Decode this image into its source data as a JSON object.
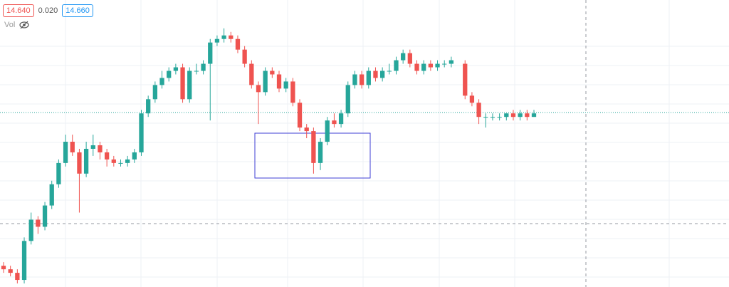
{
  "chart_data": {
    "type": "candlestick",
    "price_labels": [
      "14.640",
      "0.020",
      "14.660"
    ],
    "volume_label": "Vol",
    "up_color": "#26a69a",
    "down_color": "#ef5350",
    "ylim": [
      14.17,
      14.98
    ],
    "open": [
      14.23,
      14.22,
      14.21,
      14.19,
      14.3,
      14.36,
      14.34,
      14.4,
      14.46,
      14.52,
      14.58,
      14.55,
      14.49,
      14.56,
      14.57,
      14.55,
      14.53,
      14.52,
      14.52,
      14.53,
      14.55,
      14.66,
      14.7,
      14.74,
      14.76,
      14.78,
      14.79,
      14.7,
      14.78,
      14.78,
      14.8,
      14.86,
      14.87,
      14.88,
      14.87,
      14.84,
      14.8,
      14.74,
      14.72,
      14.78,
      14.77,
      14.73,
      14.75,
      14.69,
      14.62,
      14.61,
      14.52,
      14.58,
      14.64,
      14.63,
      14.66,
      14.74,
      14.77,
      14.74,
      14.78,
      14.76,
      14.78,
      14.78,
      14.81,
      14.83,
      14.8,
      14.78,
      14.8,
      14.79,
      14.8,
      14.8,
      null,
      14.8,
      14.71,
      14.69,
      14.65,
      14.65,
      14.65,
      14.65,
      14.66,
      14.65,
      14.66,
      14.65
    ],
    "high": [
      14.24,
      14.23,
      14.22,
      14.31,
      14.38,
      14.37,
      14.41,
      14.47,
      14.53,
      14.6,
      14.6,
      14.56,
      14.58,
      14.6,
      14.58,
      14.56,
      14.54,
      14.53,
      14.54,
      14.56,
      14.67,
      14.71,
      14.75,
      14.78,
      14.79,
      14.8,
      14.8,
      14.79,
      14.8,
      14.81,
      14.87,
      14.88,
      14.9,
      14.89,
      14.88,
      14.85,
      14.81,
      14.75,
      14.79,
      14.79,
      14.78,
      14.76,
      14.76,
      14.7,
      14.63,
      14.62,
      14.59,
      14.65,
      14.66,
      14.67,
      14.75,
      14.78,
      14.78,
      14.79,
      14.79,
      14.79,
      14.8,
      14.82,
      14.84,
      14.84,
      14.81,
      14.81,
      14.81,
      14.81,
      14.81,
      14.82,
      null,
      14.81,
      14.72,
      14.7,
      14.66,
      14.66,
      14.66,
      14.66,
      14.67,
      14.67,
      14.67,
      14.67
    ],
    "low": [
      14.21,
      14.2,
      14.18,
      14.18,
      14.29,
      14.32,
      14.33,
      14.39,
      14.45,
      14.51,
      14.54,
      14.38,
      14.48,
      14.54,
      14.53,
      14.51,
      14.51,
      14.51,
      14.51,
      14.52,
      14.54,
      14.65,
      14.69,
      14.73,
      14.75,
      14.77,
      14.69,
      14.69,
      14.77,
      14.77,
      14.64,
      14.85,
      14.86,
      14.86,
      14.83,
      14.79,
      14.73,
      14.63,
      14.71,
      14.76,
      14.72,
      14.72,
      14.68,
      14.61,
      14.59,
      14.49,
      14.5,
      14.57,
      14.62,
      14.62,
      14.65,
      14.73,
      14.73,
      14.73,
      14.75,
      14.75,
      14.77,
      14.77,
      14.8,
      14.79,
      14.77,
      14.77,
      14.78,
      14.78,
      14.79,
      14.79,
      null,
      14.7,
      14.68,
      14.63,
      14.62,
      14.64,
      14.64,
      14.64,
      14.64,
      14.64,
      14.64,
      14.65
    ],
    "close": [
      14.22,
      14.21,
      14.19,
      14.3,
      14.36,
      14.34,
      14.4,
      14.46,
      14.52,
      14.58,
      14.55,
      14.49,
      14.56,
      14.57,
      14.55,
      14.53,
      14.52,
      14.52,
      14.53,
      14.55,
      14.66,
      14.7,
      14.74,
      14.76,
      14.78,
      14.79,
      14.7,
      14.78,
      14.78,
      14.8,
      14.86,
      14.87,
      14.88,
      14.87,
      14.84,
      14.8,
      14.74,
      14.72,
      14.78,
      14.77,
      14.73,
      14.75,
      14.69,
      14.62,
      14.61,
      14.52,
      14.58,
      14.64,
      14.63,
      14.66,
      14.74,
      14.77,
      14.74,
      14.78,
      14.76,
      14.78,
      14.78,
      14.81,
      14.83,
      14.8,
      14.78,
      14.8,
      14.79,
      14.8,
      14.8,
      14.81,
      null,
      14.71,
      14.69,
      14.65,
      14.65,
      14.65,
      14.65,
      14.66,
      14.65,
      14.66,
      14.65,
      14.66
    ]
  }
}
